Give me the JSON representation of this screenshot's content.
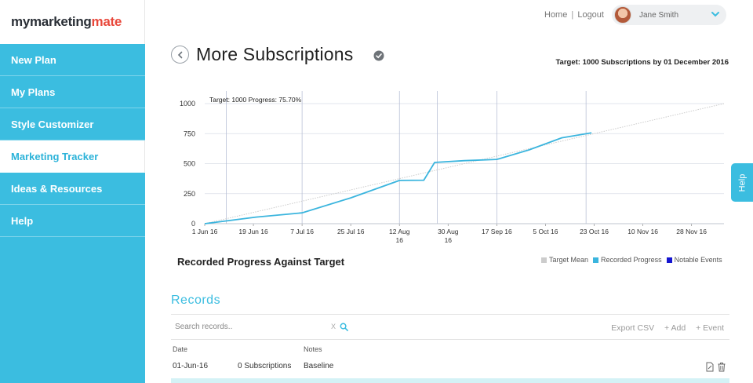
{
  "brand": {
    "part1": "mymarketing",
    "part2": "mate"
  },
  "sidebar": {
    "items": [
      {
        "label": "New Plan"
      },
      {
        "label": "My Plans"
      },
      {
        "label": "Style Customizer"
      },
      {
        "label": "Marketing Tracker",
        "active": true
      },
      {
        "label": "Ideas & Resources"
      },
      {
        "label": "Help"
      }
    ]
  },
  "topbar": {
    "home": "Home",
    "separator": "|",
    "logout": "Logout",
    "user_name": "Jane Smith"
  },
  "page": {
    "title": "More Subscriptions",
    "target": "Target: 1000 Subscriptions by 01 December 2016"
  },
  "chart_data": {
    "type": "line",
    "annotation": "Target: 1000 Progress: 75.70%",
    "caption": "Recorded Progress Against Target",
    "x_ticks": [
      "1 Jun 16",
      "19 Jun 16",
      "7 Jul 16",
      "25 Jul 16",
      "12 Aug 16",
      "30 Aug 16",
      "17 Sep 16",
      "5 Oct 16",
      "23 Oct 16",
      "10 Nov 16",
      "28 Nov 16"
    ],
    "x_tick_lines": [
      [
        "1 Jun 16"
      ],
      [
        "19 Jun 16"
      ],
      [
        "7 Jul 16"
      ],
      [
        "25 Jul 16"
      ],
      [
        "12 Aug",
        "16"
      ],
      [
        "30 Aug",
        "16"
      ],
      [
        "17 Sep 16"
      ],
      [
        "5 Oct 16"
      ],
      [
        "23 Oct 16"
      ],
      [
        "10 Nov 16"
      ],
      [
        "28 Nov 16"
      ]
    ],
    "x_range": [
      "2016-06-01",
      "2016-12-10"
    ],
    "ylim": [
      0,
      1000
    ],
    "y_ticks": [
      0,
      250,
      500,
      750,
      1000
    ],
    "grid": true,
    "series": [
      {
        "name": "Target Mean",
        "color": "#cccccc",
        "style": "dotted",
        "points": [
          [
            "2016-06-01",
            0
          ],
          [
            "2016-12-10",
            1000
          ]
        ]
      },
      {
        "name": "Recorded Progress",
        "color": "#3bb5de",
        "points": [
          [
            "2016-06-01",
            0
          ],
          [
            "2016-06-20",
            55
          ],
          [
            "2016-07-07",
            90
          ],
          [
            "2016-07-25",
            215
          ],
          [
            "2016-08-12",
            360
          ],
          [
            "2016-08-21",
            362
          ],
          [
            "2016-08-25",
            510
          ],
          [
            "2016-09-05",
            525
          ],
          [
            "2016-09-17",
            535
          ],
          [
            "2016-09-29",
            615
          ],
          [
            "2016-10-11",
            715
          ],
          [
            "2016-10-22",
            757
          ]
        ]
      }
    ],
    "notable_events": [
      "2016-06-09",
      "2016-07-07",
      "2016-08-12",
      "2016-08-26",
      "2016-09-17",
      "2016-10-20"
    ],
    "legend": [
      {
        "label": "Target Mean",
        "color": "#cccccc"
      },
      {
        "label": "Recorded Progress",
        "color": "#3bb5de"
      },
      {
        "label": "Notable Events",
        "color": "#1515d0"
      }
    ],
    "legend_position": "bottom-right"
  },
  "records": {
    "title": "Records",
    "search_placeholder": "Search records..",
    "clear_label": "X",
    "actions": {
      "export": "Export CSV",
      "add": "+ Add",
      "event": "+ Event"
    },
    "columns": {
      "date": "Date",
      "notes": "Notes"
    },
    "rows": [
      {
        "date": "01-Jun-16",
        "value": "0 Subscriptions",
        "notes": "Baseline"
      }
    ]
  },
  "help_tab": "Help",
  "colors": {
    "accent": "#3bbde0",
    "brand_red": "#e8483b"
  }
}
